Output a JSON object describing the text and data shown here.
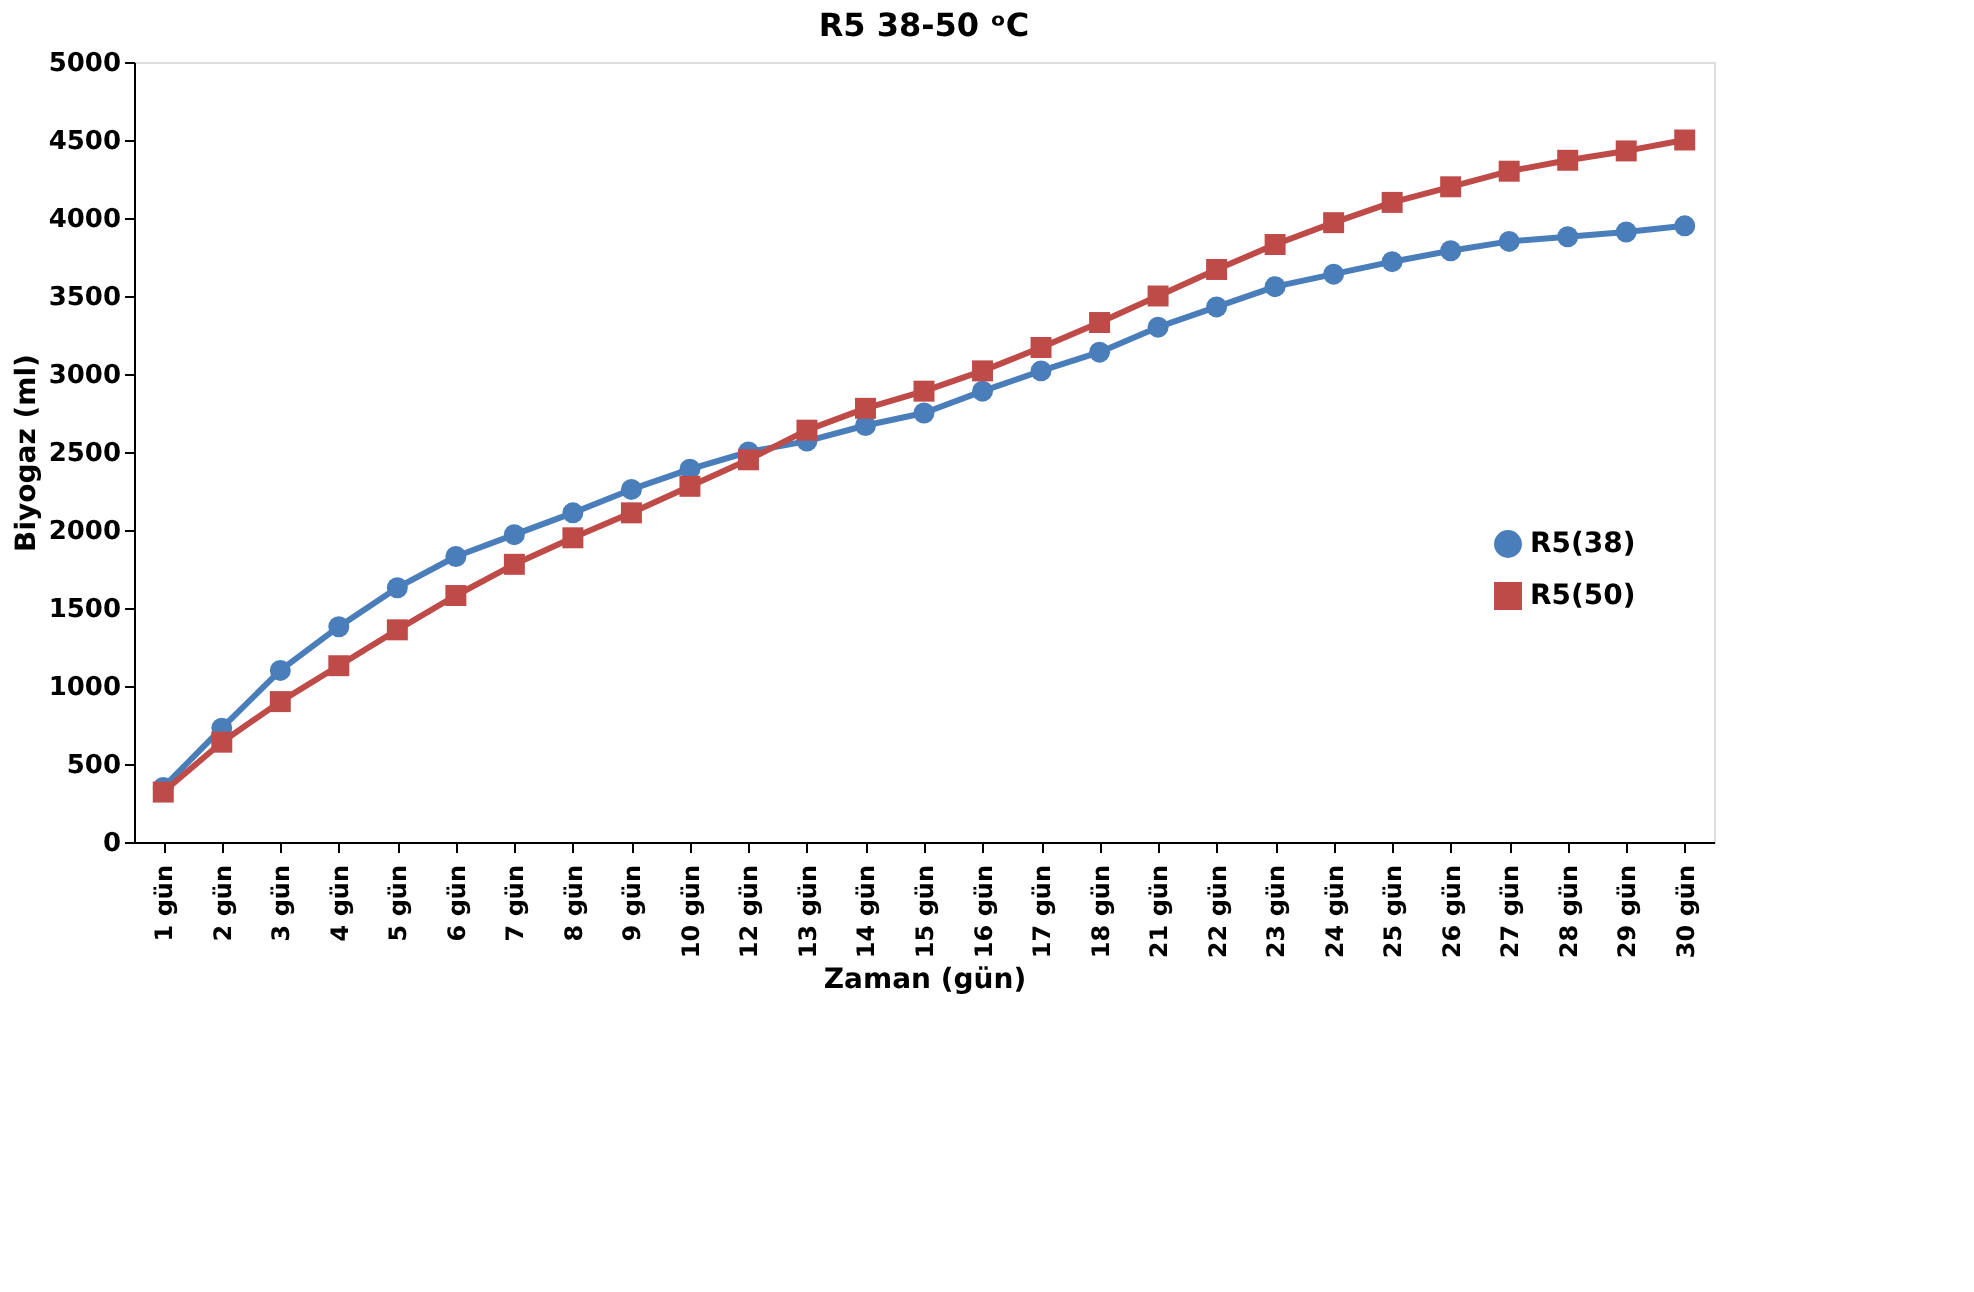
{
  "chart_data": {
    "type": "line",
    "title": "R5 38-50 ᵒC",
    "xlabel": "Zaman (gün)",
    "ylabel": "Biyogaz (ml)",
    "categories": [
      "1 gün",
      "2 gün",
      "3 gün",
      "4 gün",
      "5 gün",
      "6 gün",
      "7 gün",
      "8 gün",
      "9 gün",
      "10 gün",
      "12 gün",
      "13 gün",
      "14 gün",
      "15 gün",
      "16 gün",
      "17 gün",
      "18 gün",
      "21 gün",
      "22 gün",
      "23 gün",
      "24 gün",
      "25 gün",
      "26 gün",
      "27 gün",
      "28 gün",
      "29 gün",
      "30 gün"
    ],
    "series": [
      {
        "name": "R5(38)",
        "color": "#4a7ebb",
        "marker": "circle",
        "values": [
          350,
          730,
          1100,
          1380,
          1630,
          1830,
          1970,
          2110,
          2260,
          2390,
          2500,
          2570,
          2670,
          2750,
          2890,
          3020,
          3140,
          3300,
          3430,
          3560,
          3640,
          3720,
          3790,
          3850,
          3880,
          3910,
          3950
        ]
      },
      {
        "name": "R5(50)",
        "color": "#be4b48",
        "marker": "square",
        "values": [
          320,
          640,
          900,
          1130,
          1360,
          1580,
          1780,
          1950,
          2110,
          2280,
          2450,
          2640,
          2780,
          2890,
          3020,
          3170,
          3330,
          3500,
          3670,
          3830,
          3970,
          4100,
          4200,
          4300,
          4370,
          4430,
          4500
        ]
      }
    ],
    "ylim": [
      0,
      5000
    ],
    "yticks": [
      0,
      500,
      1000,
      1500,
      2000,
      2500,
      3000,
      3500,
      4000,
      4500,
      5000
    ],
    "grid": false,
    "legend": "right",
    "line_style": "solid"
  }
}
